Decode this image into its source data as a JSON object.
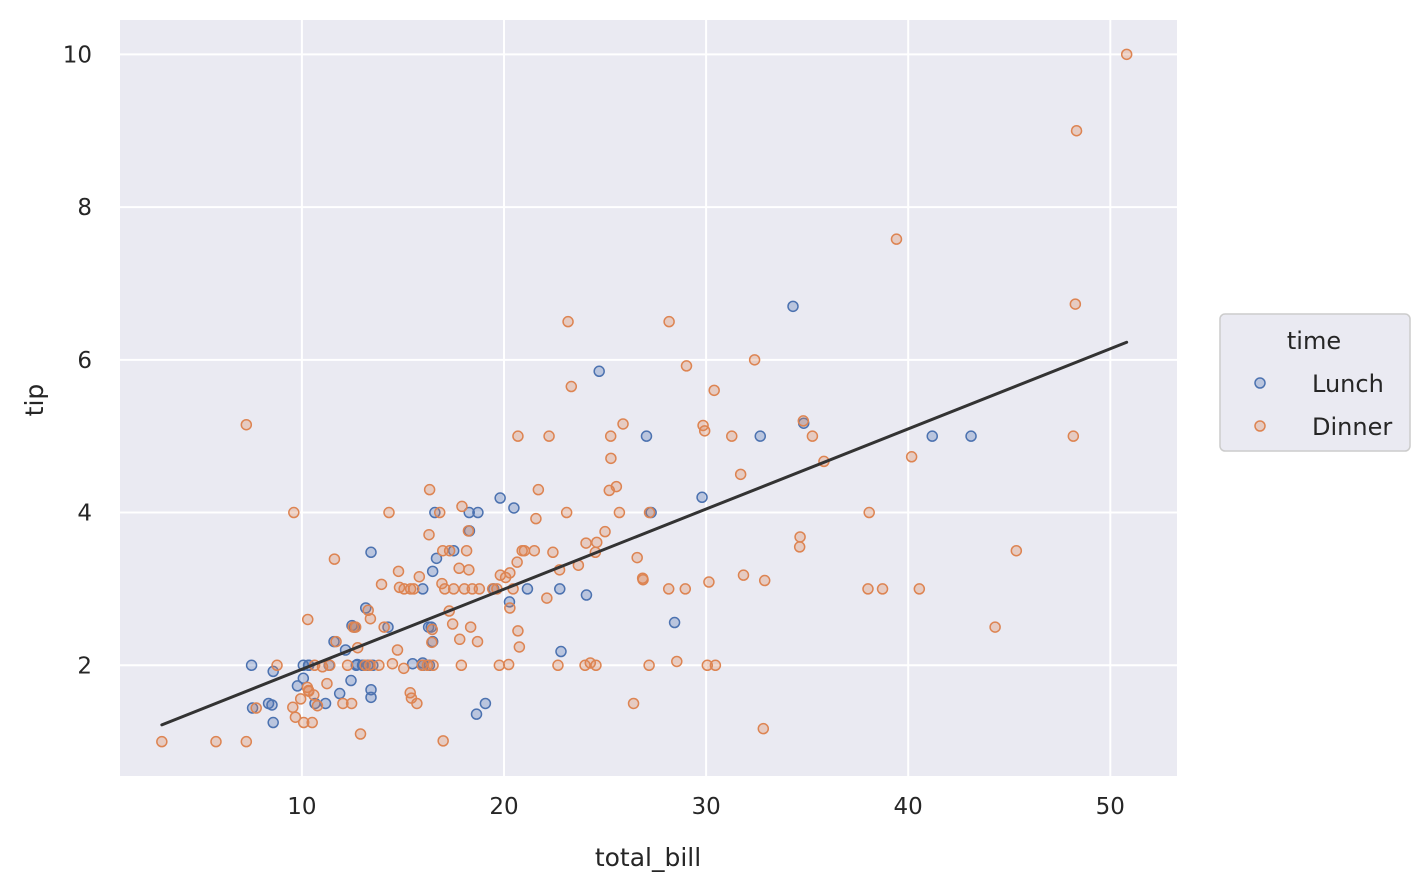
{
  "chart_data": {
    "type": "scatter",
    "xlabel": "total_bill",
    "ylabel": "tip",
    "xlim": [
      1.0,
      53.3
    ],
    "ylim": [
      0.55,
      10.45
    ],
    "xticks": [
      10,
      20,
      30,
      40,
      50
    ],
    "yticks": [
      2,
      4,
      6,
      8,
      10
    ],
    "grid": true,
    "legend": {
      "title": "time",
      "placement": "right"
    },
    "colors": {
      "Lunch": "#4c72b0",
      "Dinner": "#dd8452",
      "line": "#333333",
      "background": "#eaeaf2",
      "grid": "#ffffff"
    },
    "trend_line": {
      "x": [
        3.07,
        50.81
      ],
      "y": [
        1.22,
        6.23
      ]
    },
    "series": [
      {
        "name": "Lunch",
        "points": [
          [
            7.51,
            2.0
          ],
          [
            7.56,
            1.44
          ],
          [
            8.35,
            1.5
          ],
          [
            8.52,
            1.48
          ],
          [
            8.58,
            1.25
          ],
          [
            8.58,
            1.92
          ],
          [
            9.78,
            1.73
          ],
          [
            10.07,
            1.83
          ],
          [
            10.07,
            2.0
          ],
          [
            10.33,
            2.0
          ],
          [
            10.34,
            2.0
          ],
          [
            10.65,
            1.5
          ],
          [
            11.17,
            1.5
          ],
          [
            11.35,
            2.0
          ],
          [
            11.59,
            2.31
          ],
          [
            11.87,
            1.63
          ],
          [
            12.16,
            2.2
          ],
          [
            12.43,
            1.8
          ],
          [
            12.48,
            2.52
          ],
          [
            12.6,
            2.5
          ],
          [
            12.69,
            2.0
          ],
          [
            12.74,
            2.01
          ],
          [
            13.0,
            2.0
          ],
          [
            13.03,
            2.0
          ],
          [
            13.16,
            2.75
          ],
          [
            13.27,
            2.0
          ],
          [
            13.42,
            3.48
          ],
          [
            13.42,
            1.68
          ],
          [
            13.42,
            1.58
          ],
          [
            13.51,
            2.0
          ],
          [
            14.26,
            2.5
          ],
          [
            15.48,
            2.02
          ],
          [
            15.98,
            2.03
          ],
          [
            15.98,
            3.0
          ],
          [
            16.0,
            2.0
          ],
          [
            16.27,
            2.5
          ],
          [
            16.31,
            2.0
          ],
          [
            16.4,
            2.5
          ],
          [
            16.47,
            2.31
          ],
          [
            16.47,
            3.23
          ],
          [
            16.58,
            4.0
          ],
          [
            16.66,
            3.4
          ],
          [
            17.51,
            3.5
          ],
          [
            18.28,
            4.0
          ],
          [
            18.29,
            3.76
          ],
          [
            18.71,
            4.0
          ],
          [
            18.64,
            1.36
          ],
          [
            19.08,
            1.5
          ],
          [
            19.49,
            3.0
          ],
          [
            19.81,
            4.19
          ],
          [
            20.27,
            2.83
          ],
          [
            20.49,
            4.06
          ],
          [
            21.16,
            3.0
          ],
          [
            22.76,
            3.0
          ],
          [
            22.82,
            2.18
          ],
          [
            24.08,
            2.92
          ],
          [
            24.71,
            5.85
          ],
          [
            27.05,
            5.0
          ],
          [
            27.28,
            4.0
          ],
          [
            28.44,
            2.56
          ],
          [
            29.8,
            4.2
          ],
          [
            32.68,
            5.0
          ],
          [
            34.3,
            6.7
          ],
          [
            34.83,
            5.17
          ],
          [
            41.19,
            5.0
          ],
          [
            43.11,
            5.0
          ]
        ]
      },
      {
        "name": "Dinner",
        "points": [
          [
            3.07,
            1.0
          ],
          [
            5.75,
            1.0
          ],
          [
            7.25,
            1.0
          ],
          [
            7.25,
            5.15
          ],
          [
            7.74,
            1.44
          ],
          [
            8.77,
            2.0
          ],
          [
            9.55,
            1.45
          ],
          [
            9.6,
            4.0
          ],
          [
            9.68,
            1.32
          ],
          [
            9.94,
            1.56
          ],
          [
            10.09,
            1.25
          ],
          [
            10.27,
            1.71
          ],
          [
            10.29,
            2.6
          ],
          [
            10.33,
            1.67
          ],
          [
            10.34,
            1.66
          ],
          [
            10.51,
            1.25
          ],
          [
            10.59,
            1.61
          ],
          [
            10.63,
            2.0
          ],
          [
            10.77,
            1.47
          ],
          [
            11.02,
            1.98
          ],
          [
            11.24,
            1.76
          ],
          [
            11.38,
            2.0
          ],
          [
            11.61,
            3.39
          ],
          [
            11.69,
            2.31
          ],
          [
            12.03,
            1.5
          ],
          [
            12.26,
            2.0
          ],
          [
            12.46,
            1.5
          ],
          [
            12.54,
            2.5
          ],
          [
            12.66,
            2.5
          ],
          [
            12.76,
            2.23
          ],
          [
            12.9,
            1.1
          ],
          [
            13.13,
            2.0
          ],
          [
            13.28,
            2.72
          ],
          [
            13.37,
            2.0
          ],
          [
            13.39,
            2.61
          ],
          [
            13.81,
            2.0
          ],
          [
            13.94,
            3.06
          ],
          [
            14.07,
            2.5
          ],
          [
            14.31,
            4.0
          ],
          [
            14.48,
            2.02
          ],
          [
            14.73,
            2.2
          ],
          [
            14.78,
            3.23
          ],
          [
            14.83,
            3.02
          ],
          [
            15.04,
            1.96
          ],
          [
            15.06,
            3.0
          ],
          [
            15.36,
            1.64
          ],
          [
            15.38,
            3.0
          ],
          [
            15.42,
            1.57
          ],
          [
            15.53,
            3.0
          ],
          [
            15.69,
            1.5
          ],
          [
            15.81,
            3.16
          ],
          [
            15.95,
            2.0
          ],
          [
            16.21,
            2.0
          ],
          [
            16.29,
            3.71
          ],
          [
            16.32,
            4.3
          ],
          [
            16.43,
            2.3
          ],
          [
            16.45,
            2.47
          ],
          [
            16.49,
            2.0
          ],
          [
            16.82,
            4.0
          ],
          [
            16.93,
            3.07
          ],
          [
            16.97,
            3.5
          ],
          [
            16.99,
            1.01
          ],
          [
            17.07,
            3.0
          ],
          [
            17.29,
            2.71
          ],
          [
            17.31,
            3.5
          ],
          [
            17.46,
            2.54
          ],
          [
            17.51,
            3.0
          ],
          [
            17.78,
            3.27
          ],
          [
            17.81,
            2.34
          ],
          [
            17.89,
            2.0
          ],
          [
            17.92,
            4.08
          ],
          [
            18.04,
            3.0
          ],
          [
            18.15,
            3.5
          ],
          [
            18.24,
            3.76
          ],
          [
            18.26,
            3.25
          ],
          [
            18.35,
            2.5
          ],
          [
            18.43,
            3.0
          ],
          [
            18.69,
            2.31
          ],
          [
            18.78,
            3.0
          ],
          [
            19.44,
            3.0
          ],
          [
            19.65,
            3.0
          ],
          [
            19.77,
            2.0
          ],
          [
            19.82,
            3.18
          ],
          [
            20.08,
            3.15
          ],
          [
            20.23,
            2.01
          ],
          [
            20.29,
            3.21
          ],
          [
            20.29,
            2.75
          ],
          [
            20.45,
            3.0
          ],
          [
            20.65,
            3.35
          ],
          [
            20.69,
            2.45
          ],
          [
            20.69,
            5.0
          ],
          [
            20.76,
            2.24
          ],
          [
            20.9,
            3.5
          ],
          [
            21.01,
            3.5
          ],
          [
            21.5,
            3.5
          ],
          [
            21.58,
            3.92
          ],
          [
            21.7,
            4.3
          ],
          [
            22.12,
            2.88
          ],
          [
            22.23,
            5.0
          ],
          [
            22.42,
            3.48
          ],
          [
            22.67,
            2.0
          ],
          [
            22.75,
            3.25
          ],
          [
            23.1,
            4.0
          ],
          [
            23.17,
            6.5
          ],
          [
            23.33,
            5.65
          ],
          [
            23.68,
            3.31
          ],
          [
            24.01,
            2.0
          ],
          [
            24.06,
            3.6
          ],
          [
            24.27,
            2.03
          ],
          [
            24.52,
            3.48
          ],
          [
            24.55,
            2.0
          ],
          [
            24.59,
            3.61
          ],
          [
            25.0,
            3.75
          ],
          [
            25.21,
            4.29
          ],
          [
            25.28,
            5.0
          ],
          [
            25.29,
            4.71
          ],
          [
            25.56,
            4.34
          ],
          [
            25.71,
            4.0
          ],
          [
            25.89,
            5.16
          ],
          [
            26.41,
            1.5
          ],
          [
            26.59,
            3.41
          ],
          [
            26.86,
            3.14
          ],
          [
            26.88,
            3.12
          ],
          [
            27.2,
            4.0
          ],
          [
            27.18,
            2.0
          ],
          [
            28.15,
            3.0
          ],
          [
            28.17,
            6.5
          ],
          [
            28.55,
            2.05
          ],
          [
            28.97,
            3.0
          ],
          [
            29.03,
            5.92
          ],
          [
            29.85,
            5.14
          ],
          [
            29.93,
            5.07
          ],
          [
            30.06,
            2.0
          ],
          [
            30.14,
            3.09
          ],
          [
            30.4,
            5.6
          ],
          [
            30.46,
            2.0
          ],
          [
            31.27,
            5.0
          ],
          [
            31.71,
            4.5
          ],
          [
            31.85,
            3.18
          ],
          [
            32.4,
            6.0
          ],
          [
            32.83,
            1.17
          ],
          [
            32.9,
            3.11
          ],
          [
            34.63,
            3.55
          ],
          [
            34.65,
            3.68
          ],
          [
            34.81,
            5.2
          ],
          [
            35.26,
            5.0
          ],
          [
            35.83,
            4.67
          ],
          [
            38.01,
            3.0
          ],
          [
            38.07,
            4.0
          ],
          [
            38.73,
            3.0
          ],
          [
            39.42,
            7.58
          ],
          [
            40.17,
            4.73
          ],
          [
            40.55,
            3.0
          ],
          [
            44.3,
            2.5
          ],
          [
            45.35,
            3.5
          ],
          [
            48.17,
            5.0
          ],
          [
            48.27,
            6.73
          ],
          [
            48.33,
            9.0
          ],
          [
            50.81,
            10.0
          ]
        ]
      }
    ]
  }
}
